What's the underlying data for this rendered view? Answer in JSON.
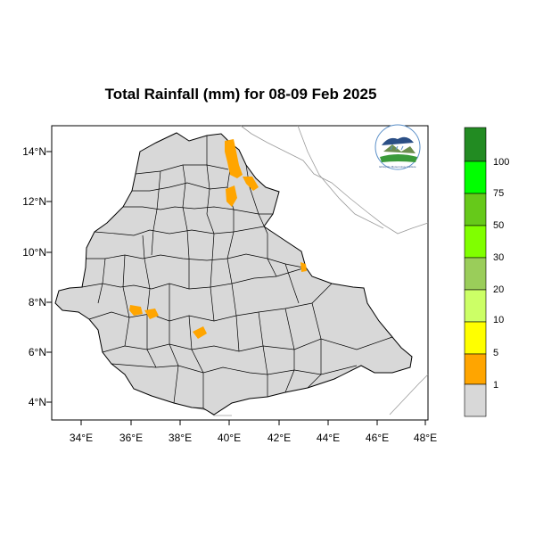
{
  "map": {
    "title": "Total Rainfall (mm) for 08-09 Feb 2025",
    "lon_ticks": [
      "34°E",
      "36°E",
      "38°E",
      "40°E",
      "42°E",
      "44°E",
      "46°E",
      "48°E"
    ],
    "lat_ticks": [
      "14°N",
      "12°N",
      "10°N",
      "8°N",
      "6°N",
      "4°N"
    ],
    "land_color": "#d8d8d8",
    "rain_color": "#ffa500",
    "logo_label": "Ethiopian Meteorology Institute"
  },
  "legend": {
    "levels": [
      {
        "label": "1",
        "color": "#ffa500"
      },
      {
        "label": "5",
        "color": "#ffff00"
      },
      {
        "label": "10",
        "color": "#ccff66"
      },
      {
        "label": "20",
        "color": "#9acd5a"
      },
      {
        "label": "30",
        "color": "#80ff00"
      },
      {
        "label": "50",
        "color": "#66c91a"
      },
      {
        "label": "75",
        "color": "#00ff00"
      },
      {
        "label": "100",
        "color": "#228b22"
      }
    ],
    "below_color": "#d8d8d8"
  }
}
